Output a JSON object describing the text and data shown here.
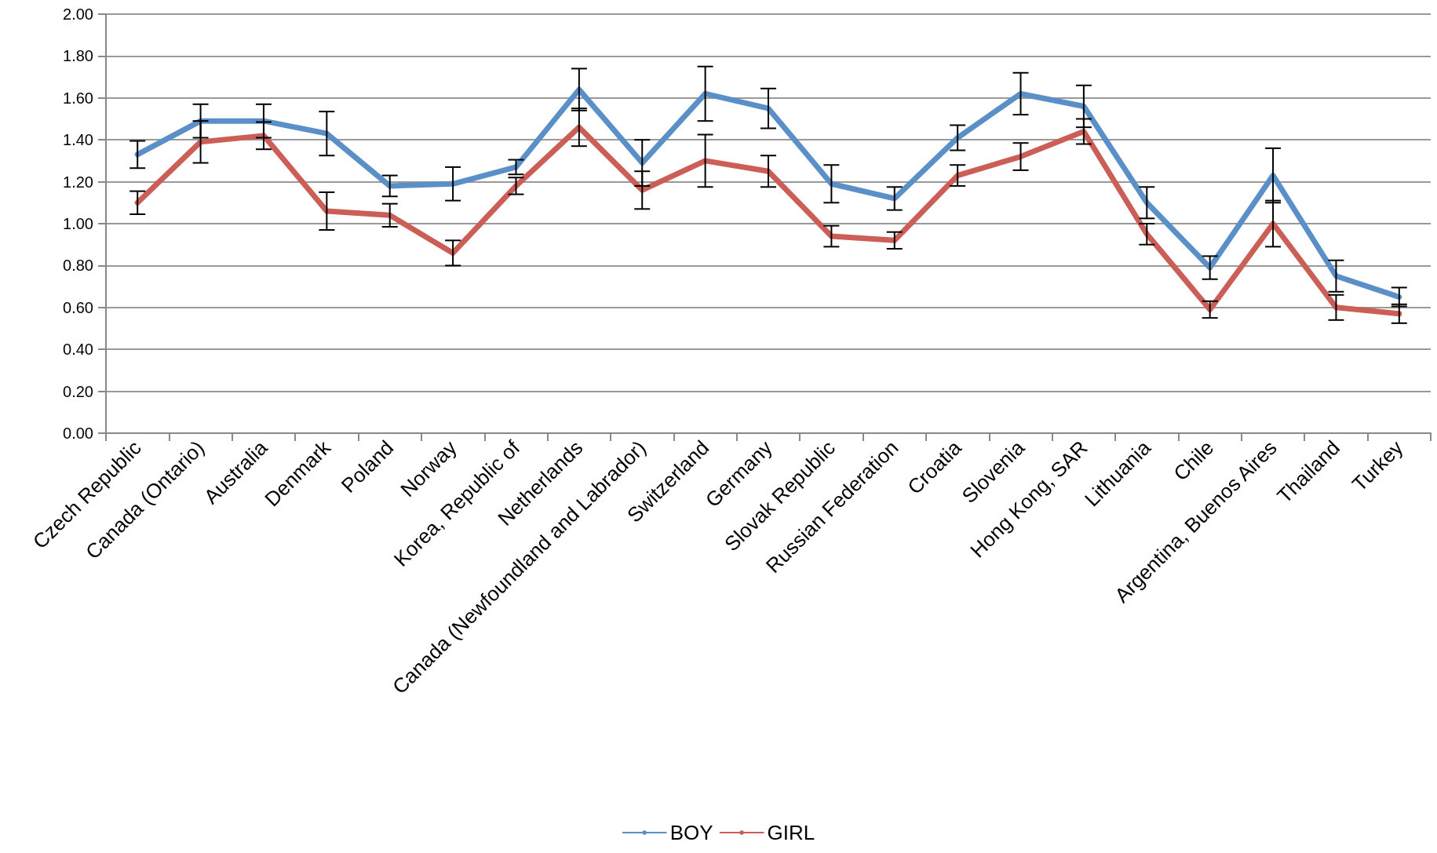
{
  "chart_data": {
    "type": "line",
    "categories": [
      "Czech Republic",
      "Canada (Ontario)",
      "Australia",
      "Denmark",
      "Poland",
      "Norway",
      "Korea, Republic of",
      "Netherlands",
      "Canada (Newfoundland and Labrador)",
      "Switzerland",
      "Germany",
      "Slovak Republic",
      "Russian Federation",
      "Croatia",
      "Slovenia",
      "Hong Kong, SAR",
      "Lithuania",
      "Chile",
      "Argentina, Buenos Aires",
      "Thailand",
      "Turkey"
    ],
    "series": [
      {
        "name": "BOY",
        "color": "#5b8fc7",
        "values": [
          1.33,
          1.49,
          1.49,
          1.43,
          1.18,
          1.19,
          1.27,
          1.64,
          1.29,
          1.62,
          1.55,
          1.19,
          1.12,
          1.41,
          1.62,
          1.56,
          1.1,
          0.79,
          1.23,
          0.75,
          0.65
        ],
        "errors": [
          0.065,
          0.08,
          0.08,
          0.105,
          0.05,
          0.08,
          0.035,
          0.1,
          0.11,
          0.13,
          0.095,
          0.09,
          0.055,
          0.06,
          0.1,
          0.1,
          0.075,
          0.055,
          0.13,
          0.075,
          0.045
        ]
      },
      {
        "name": "GIRL",
        "color": "#cb5f57",
        "values": [
          1.1,
          1.39,
          1.42,
          1.06,
          1.04,
          0.86,
          1.18,
          1.46,
          1.16,
          1.3,
          1.25,
          0.94,
          0.92,
          1.23,
          1.32,
          1.44,
          0.95,
          0.59,
          1.0,
          0.6,
          0.57
        ],
        "errors": [
          0.055,
          0.1,
          0.065,
          0.09,
          0.055,
          0.06,
          0.04,
          0.09,
          0.09,
          0.125,
          0.075,
          0.05,
          0.04,
          0.05,
          0.065,
          0.06,
          0.05,
          0.04,
          0.11,
          0.06,
          0.045
        ]
      }
    ],
    "ylim": [
      0,
      2
    ],
    "yticks": [
      {
        "value": 0,
        "label": "0.00"
      },
      {
        "value": 0.2,
        "label": "0.20"
      },
      {
        "value": 0.4,
        "label": "0.40"
      },
      {
        "value": 0.6,
        "label": "0.60"
      },
      {
        "value": 0.8,
        "label": "0.80"
      },
      {
        "value": 1,
        "label": "1.00"
      },
      {
        "value": 1.2,
        "label": "1.20"
      },
      {
        "value": 1.4,
        "label": "1.40"
      },
      {
        "value": 1.6,
        "label": "1.60"
      },
      {
        "value": 1.8,
        "label": "1.80"
      },
      {
        "value": 2,
        "label": "2.00"
      }
    ],
    "grid": "y",
    "legend": "bottom",
    "marker": "none",
    "line_style": "solid"
  }
}
